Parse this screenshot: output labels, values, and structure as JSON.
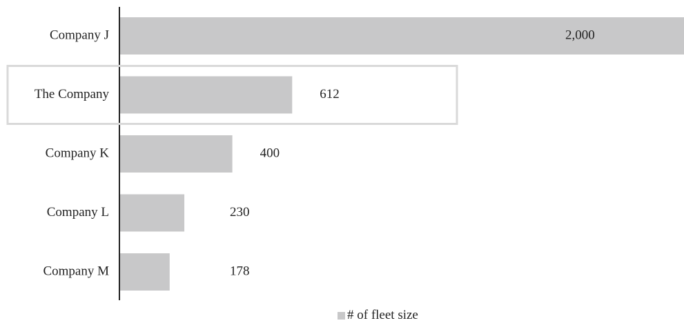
{
  "chart_data": {
    "type": "bar",
    "orientation": "horizontal",
    "categories": [
      "Company J",
      "The Company",
      "Company K",
      "Company L",
      "Company M"
    ],
    "values": [
      2000,
      612,
      400,
      230,
      178
    ],
    "value_labels": [
      "2,000",
      "612",
      "400",
      "230",
      "178"
    ],
    "series": [
      {
        "name": "# of fleet size",
        "values": [
          2000,
          612,
          400,
          230,
          178
        ]
      }
    ],
    "highlighted_category": "The Company",
    "xlim": [
      0,
      2000
    ],
    "grid": false,
    "legend_position": "bottom-center",
    "title": "",
    "xlabel": "",
    "ylabel": ""
  },
  "colors": {
    "bar": "#c8c8c9",
    "axis": "#222222",
    "highlight_box": "#d9d9d9",
    "text": "#222222"
  },
  "legend": {
    "label": "# of fleet size"
  }
}
